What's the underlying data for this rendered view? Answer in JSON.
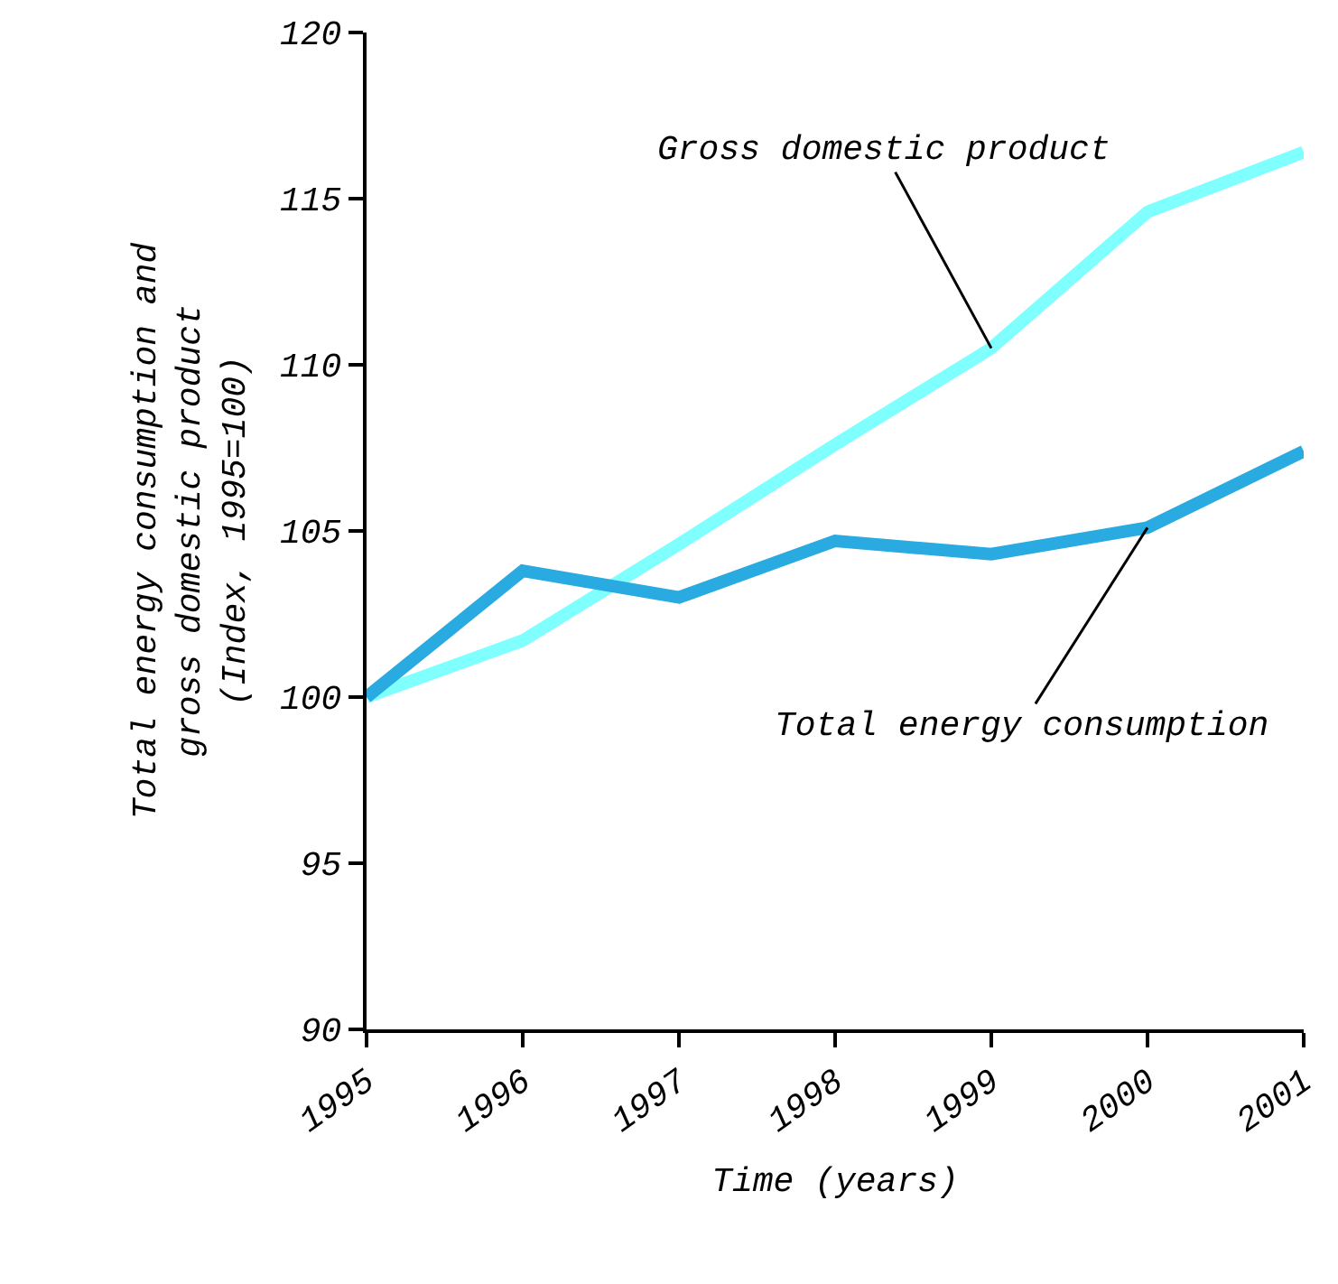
{
  "chart_data": {
    "type": "line",
    "xlabel": "Time (years)",
    "ylabel": "Total energy consumption and\ngross domestic product\n(Index, 1995=100)",
    "x": [
      1995,
      1996,
      1997,
      1998,
      1999,
      2000,
      2001
    ],
    "series": [
      {
        "name": "Gross domestic product",
        "color": "#80ffff",
        "values": [
          100,
          101.7,
          104.6,
          107.6,
          110.5,
          114.6,
          116.4
        ]
      },
      {
        "name": "Total energy consumption",
        "color": "#29aae1",
        "values": [
          100,
          103.8,
          103.0,
          104.7,
          104.3,
          105.1,
          107.4
        ]
      }
    ],
    "xlim": [
      1995,
      2001
    ],
    "xticks": [
      1995,
      1996,
      1997,
      1998,
      1999,
      2000,
      2001
    ],
    "ylim": [
      90,
      120
    ],
    "yticks": [
      90,
      95,
      100,
      105,
      110,
      115,
      120
    ],
    "legend": false,
    "marker": "none",
    "line_style": "solid"
  }
}
